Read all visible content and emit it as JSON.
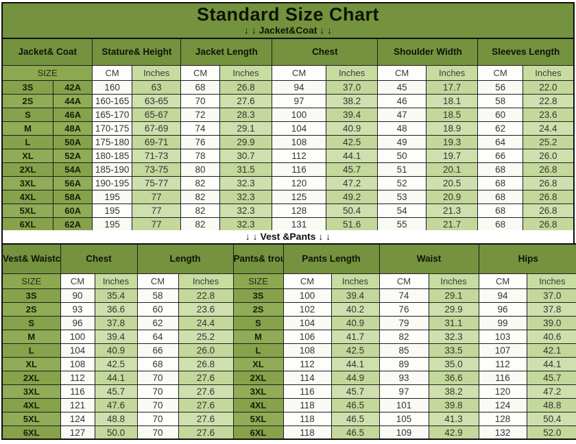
{
  "title": "Standard Size Chart",
  "sections": {
    "jacket": {
      "banner": "↓ ↓  Jacket&Coat ↓ ↓"
    },
    "vest": {
      "banner": "↓ ↓  Vest &Pants ↓ ↓"
    }
  },
  "colors": {
    "header_green": "#75923F",
    "cell_green": "#8CA851",
    "light_green": "#C8DCA2",
    "border": "#0D0D0D"
  },
  "tables": {
    "jacket": {
      "groups": [
        {
          "label": "Jacket&\nCoat",
          "span": 2
        },
        {
          "label": "Stature&\nHeight",
          "span": 2
        },
        {
          "label": "Jacket\nLength",
          "span": 2
        },
        {
          "label": "Chest",
          "span": 2
        },
        {
          "label": "Shoulder\nWidth",
          "span": 2
        },
        {
          "label": "Sleeves\nLength",
          "span": 2
        }
      ],
      "subheaders": [
        {
          "label": "SIZE",
          "span": 2,
          "type": "size-h"
        },
        {
          "label": "CM",
          "type": "cm"
        },
        {
          "label": "Inches",
          "type": "in"
        },
        {
          "label": "CM",
          "type": "cm"
        },
        {
          "label": "Inches",
          "type": "in"
        },
        {
          "label": "CM",
          "type": "cm"
        },
        {
          "label": "Inches",
          "type": "in"
        },
        {
          "label": "CM",
          "type": "cm"
        },
        {
          "label": "Inches",
          "type": "in"
        },
        {
          "label": "CM",
          "type": "cm"
        },
        {
          "label": "Inches",
          "type": "in"
        }
      ],
      "col_types": [
        "size",
        "size",
        "cm",
        "in",
        "cm",
        "in",
        "cm",
        "in",
        "cm",
        "in",
        "cm",
        "in"
      ],
      "rows": [
        [
          "3S",
          "42A",
          "160",
          "63",
          "68",
          "26.8",
          "94",
          "37.0",
          "45",
          "17.7",
          "56",
          "22.0"
        ],
        [
          "2S",
          "44A",
          "160-165",
          "63-65",
          "70",
          "27.6",
          "97",
          "38.2",
          "46",
          "18.1",
          "58",
          "22.8"
        ],
        [
          "S",
          "46A",
          "165-170",
          "65-67",
          "72",
          "28.3",
          "100",
          "39.4",
          "47",
          "18.5",
          "60",
          "23.6"
        ],
        [
          "M",
          "48A",
          "170-175",
          "67-69",
          "74",
          "29.1",
          "104",
          "40.9",
          "48",
          "18.9",
          "62",
          "24.4"
        ],
        [
          "L",
          "50A",
          "175-180",
          "69-71",
          "76",
          "29.9",
          "108",
          "42.5",
          "49",
          "19.3",
          "64",
          "25.2"
        ],
        [
          "XL",
          "52A",
          "180-185",
          "71-73",
          "78",
          "30.7",
          "112",
          "44.1",
          "50",
          "19.7",
          "66",
          "26.0"
        ],
        [
          "2XL",
          "54A",
          "185-190",
          "73-75",
          "80",
          "31.5",
          "116",
          "45.7",
          "51",
          "20.1",
          "68",
          "26.8"
        ],
        [
          "3XL",
          "56A",
          "190-195",
          "75-77",
          "82",
          "32.3",
          "120",
          "47.2",
          "52",
          "20.5",
          "68",
          "26.8"
        ],
        [
          "4XL",
          "58A",
          "195",
          "77",
          "82",
          "32.3",
          "125",
          "49.2",
          "53",
          "20.9",
          "68",
          "26.8"
        ],
        [
          "5XL",
          "60A",
          "195",
          "77",
          "82",
          "32.3",
          "128",
          "50.4",
          "54",
          "21.3",
          "68",
          "26.8"
        ],
        [
          "6XL",
          "62A",
          "195",
          "77",
          "82",
          "32.3",
          "131",
          "51.6",
          "55",
          "21.7",
          "68",
          "26.8"
        ]
      ]
    },
    "vest": {
      "groups": [
        {
          "label": "Vest&\nWaistcoat",
          "span": 1
        },
        {
          "label": "Chest",
          "span": 2
        },
        {
          "label": "Length",
          "span": 2
        },
        {
          "label": "Pants&\ntrousers",
          "span": 1
        },
        {
          "label": "Pants\nLength",
          "span": 2
        },
        {
          "label": "Waist",
          "span": 2
        },
        {
          "label": "Hips",
          "span": 2
        }
      ],
      "subheaders": [
        {
          "label": "SIZE",
          "type": "size-h"
        },
        {
          "label": "CM",
          "type": "cm"
        },
        {
          "label": "Inches",
          "type": "in"
        },
        {
          "label": "CM",
          "type": "cm"
        },
        {
          "label": "Inches",
          "type": "in"
        },
        {
          "label": "SIZE",
          "type": "size-h"
        },
        {
          "label": "CM",
          "type": "cm"
        },
        {
          "label": "Inches",
          "type": "in"
        },
        {
          "label": "CM",
          "type": "cm"
        },
        {
          "label": "Inches",
          "type": "in"
        },
        {
          "label": "CM",
          "type": "cm"
        },
        {
          "label": "Inches",
          "type": "in"
        }
      ],
      "col_types": [
        "size",
        "cm",
        "in",
        "cm",
        "in",
        "size",
        "cm",
        "in",
        "cm",
        "in",
        "cm",
        "in"
      ],
      "rows": [
        [
          "3S",
          "90",
          "35.4",
          "58",
          "22.8",
          "3S",
          "100",
          "39.4",
          "74",
          "29.1",
          "94",
          "37.0"
        ],
        [
          "2S",
          "93",
          "36.6",
          "60",
          "23.6",
          "2S",
          "102",
          "40.2",
          "76",
          "29.9",
          "96",
          "37.8"
        ],
        [
          "S",
          "96",
          "37.8",
          "62",
          "24.4",
          "S",
          "104",
          "40.9",
          "79",
          "31.1",
          "99",
          "39.0"
        ],
        [
          "M",
          "100",
          "39.4",
          "64",
          "25.2",
          "M",
          "106",
          "41.7",
          "82",
          "32.3",
          "103",
          "40.6"
        ],
        [
          "L",
          "104",
          "40.9",
          "66",
          "26.0",
          "L",
          "108",
          "42.5",
          "85",
          "33.5",
          "107",
          "42.1"
        ],
        [
          "XL",
          "108",
          "42.5",
          "68",
          "26.8",
          "XL",
          "112",
          "44.1",
          "89",
          "35.0",
          "112",
          "44.1"
        ],
        [
          "2XL",
          "112",
          "44.1",
          "70",
          "27.6",
          "2XL",
          "114",
          "44.9",
          "93",
          "36.6",
          "116",
          "45.7"
        ],
        [
          "3XL",
          "116",
          "45.7",
          "70",
          "27.6",
          "3XL",
          "116",
          "45.7",
          "97",
          "38.2",
          "120",
          "47.2"
        ],
        [
          "4XL",
          "121",
          "47.6",
          "70",
          "27.6",
          "4XL",
          "118",
          "46.5",
          "101",
          "39.8",
          "124",
          "48.8"
        ],
        [
          "5XL",
          "124",
          "48.8",
          "70",
          "27.6",
          "5XL",
          "118",
          "46.5",
          "105",
          "41.3",
          "128",
          "50.4"
        ],
        [
          "6XL",
          "127",
          "50.0",
          "70",
          "27.6",
          "6XL",
          "118",
          "46.5",
          "109",
          "42.9",
          "132",
          "52.0"
        ]
      ]
    }
  }
}
